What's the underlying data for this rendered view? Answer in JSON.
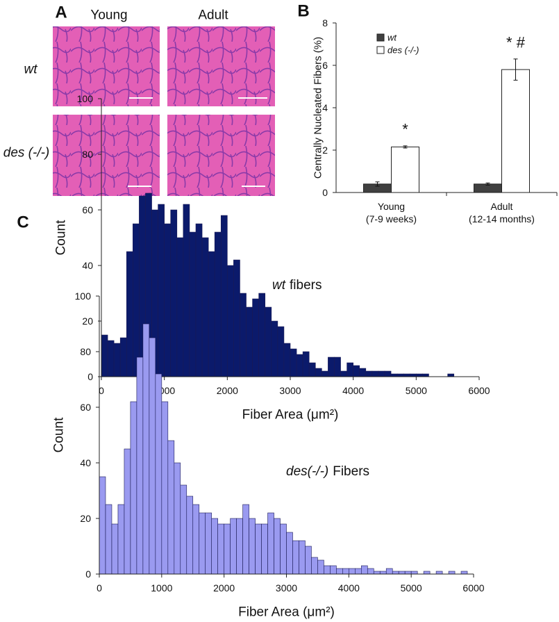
{
  "panel_a": {
    "panel": "A",
    "columns": [
      "Young",
      "Adult"
    ],
    "rows": [
      "wt",
      "des (-/-)"
    ]
  },
  "chart_data": [
    {
      "type": "bar",
      "panel": "B",
      "ylabel": "Centrally Nucleated Fibers (%)",
      "categories": [
        "Young",
        "Adult"
      ],
      "category_notes": [
        "(7-9 weeks)",
        "(12-14 months)"
      ],
      "series": [
        {
          "name": "wt",
          "color": "#404040",
          "values": [
            0.4,
            0.4
          ],
          "errors": [
            0.1,
            0.05
          ]
        },
        {
          "name": "des (-/-)",
          "color": "#ffffff",
          "values": [
            2.15,
            5.8
          ],
          "errors": [
            0.05,
            0.5
          ]
        }
      ],
      "annotations": [
        "*",
        "* #"
      ],
      "ylim": [
        0,
        8
      ],
      "yticks": [
        0,
        2,
        4,
        6,
        8
      ]
    },
    {
      "type": "histogram",
      "panel": "C",
      "annotation": {
        "italic": "wt",
        "text": "fibers"
      },
      "xlabel": "Fiber Area (μm²)",
      "ylabel": "Count",
      "color": "#0b1a6b",
      "bins": [
        0,
        100,
        200,
        300,
        400,
        500,
        600,
        700,
        800,
        900,
        1000,
        1100,
        1200,
        1300,
        1400,
        1500,
        1600,
        1700,
        1800,
        1900,
        2000,
        2100,
        2200,
        2300,
        2400,
        2500,
        2600,
        2700,
        2800,
        2900,
        3000,
        3100,
        3200,
        3300,
        3400,
        3500,
        3600,
        3700,
        3800,
        3900,
        4000,
        4100,
        4200,
        4300,
        4400,
        4500,
        4600,
        4700,
        4800,
        4900,
        5000,
        5100,
        5200,
        5300,
        5400,
        5500,
        5600,
        5700,
        5800,
        5900,
        6000
      ],
      "values": [
        15,
        13,
        12,
        14,
        45,
        55,
        65,
        66,
        60,
        62,
        55,
        60,
        50,
        62,
        52,
        55,
        50,
        45,
        52,
        58,
        40,
        42,
        30,
        25,
        28,
        30,
        25,
        20,
        18,
        12,
        10,
        8,
        9,
        5,
        3,
        2,
        7,
        7,
        2,
        5,
        4,
        3,
        2,
        2,
        2,
        2,
        1,
        1,
        1,
        1,
        1,
        1,
        0,
        0,
        0,
        1,
        0,
        0,
        0,
        0
      ],
      "xlim": [
        0,
        6000
      ],
      "xticks": [
        0,
        1000,
        2000,
        3000,
        4000,
        5000,
        6000
      ],
      "ylim": [
        0,
        100
      ],
      "yticks": [
        0,
        20,
        40,
        60,
        80,
        100
      ]
    },
    {
      "type": "histogram",
      "annotation": {
        "italic": "des(-/-)",
        "text": "Fibers"
      },
      "xlabel": "Fiber Area (μm²)",
      "ylabel": "Count",
      "color": "#9a9af0",
      "bins": [
        0,
        100,
        200,
        300,
        400,
        500,
        600,
        700,
        800,
        900,
        1000,
        1100,
        1200,
        1300,
        1400,
        1500,
        1600,
        1700,
        1800,
        1900,
        2000,
        2100,
        2200,
        2300,
        2400,
        2500,
        2600,
        2700,
        2800,
        2900,
        3000,
        3100,
        3200,
        3300,
        3400,
        3500,
        3600,
        3700,
        3800,
        3900,
        4000,
        4100,
        4200,
        4300,
        4400,
        4500,
        4600,
        4700,
        4800,
        4900,
        5000,
        5100,
        5200,
        5300,
        5400,
        5500,
        5600,
        5700,
        5800,
        5900,
        6000
      ],
      "values": [
        35,
        25,
        18,
        25,
        45,
        62,
        78,
        90,
        85,
        72,
        62,
        48,
        40,
        32,
        28,
        25,
        22,
        22,
        20,
        18,
        18,
        20,
        20,
        25,
        20,
        18,
        18,
        22,
        20,
        18,
        15,
        12,
        12,
        10,
        6,
        5,
        3,
        3,
        2,
        2,
        2,
        2,
        3,
        2,
        1,
        1,
        2,
        1,
        1,
        1,
        1,
        0,
        1,
        0,
        1,
        0,
        1,
        0,
        1,
        0
      ],
      "xlim": [
        0,
        6000
      ],
      "xticks": [
        0,
        1000,
        2000,
        3000,
        4000,
        5000,
        6000
      ],
      "ylim": [
        0,
        100
      ],
      "yticks": [
        0,
        20,
        40,
        60,
        80,
        100
      ]
    }
  ]
}
